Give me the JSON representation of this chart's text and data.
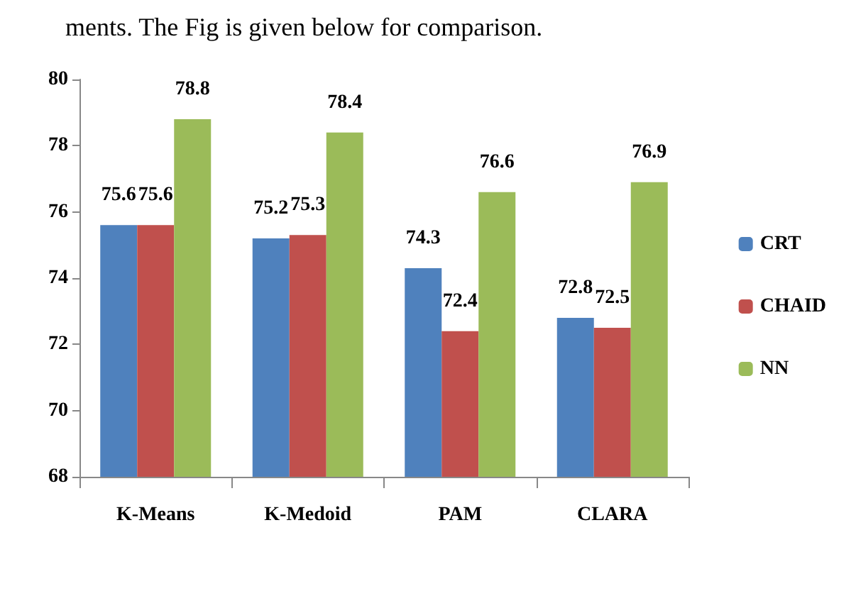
{
  "chart_data": {
    "type": "bar",
    "categories": [
      "K-Means",
      "K-Medoid",
      "PAM",
      "CLARA"
    ],
    "series": [
      {
        "name": "CRT",
        "color": "#4f81bd",
        "values": [
          75.6,
          75.2,
          74.3,
          72.8
        ]
      },
      {
        "name": "CHAID",
        "color": "#c0504d",
        "values": [
          75.6,
          75.3,
          72.4,
          72.5
        ]
      },
      {
        "name": "NN",
        "color": "#9bbb59",
        "values": [
          78.8,
          78.4,
          76.6,
          76.9
        ]
      }
    ],
    "ylim": [
      68,
      80
    ],
    "yticks": [
      68,
      70,
      72,
      74,
      76,
      78,
      80
    ],
    "grid": false,
    "legend": "right",
    "data_labels": true,
    "annotations": [
      "ments. The Fig is given below for comparison."
    ]
  }
}
